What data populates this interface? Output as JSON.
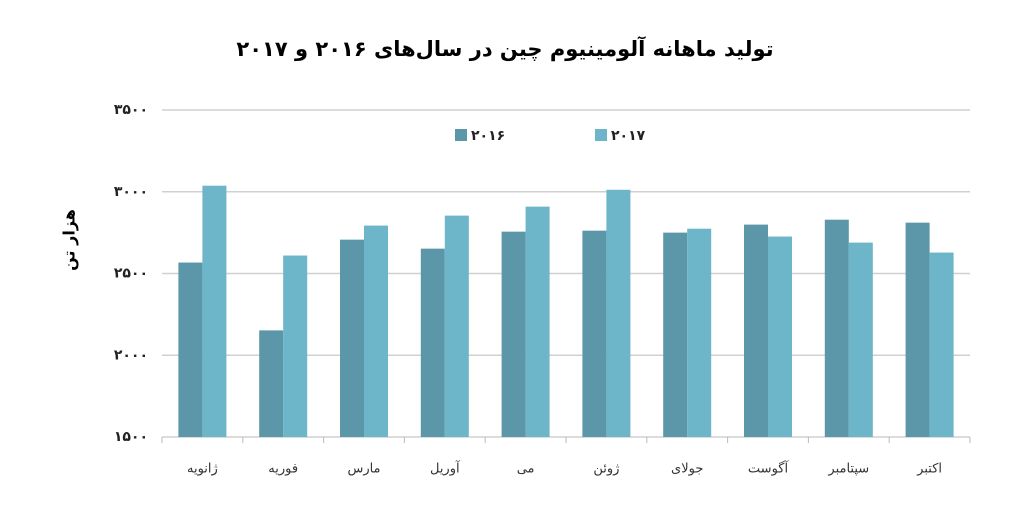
{
  "chart_data": {
    "type": "bar",
    "title": "تولید ماهانه آلومینیوم چین در سال‌های ۲۰۱۶ و ۲۰۱۷",
    "y_label": "هزار تن",
    "categories": [
      "ژانویه",
      "فوریه",
      "مارس",
      "آوریل",
      "می",
      "ژوئن",
      "جولای",
      "آگوست",
      "سپتامبر",
      "اکتبر"
    ],
    "series": [
      {
        "name": "۲۰۱۶",
        "color": "#5b97a8",
        "values": [
          2567,
          2152,
          2707,
          2652,
          2756,
          2762,
          2750,
          2799,
          2829,
          2811
        ]
      },
      {
        "name": "۲۰۱۷",
        "color": "#6db5c8",
        "values": [
          3037,
          2610,
          2793,
          2854,
          2909,
          3012,
          2774,
          2726,
          2689,
          2628
        ]
      }
    ],
    "ylim": [
      1500,
      3500
    ],
    "yticks": [
      {
        "value": 1500,
        "label": "۱۵۰۰"
      },
      {
        "value": 2000,
        "label": "۲۰۰۰"
      },
      {
        "value": 2500,
        "label": "۲۵۰۰"
      },
      {
        "value": 3000,
        "label": "۳۰۰۰"
      },
      {
        "value": 3500,
        "label": "۳۵۰۰"
      }
    ],
    "grid": true,
    "legend": "top"
  }
}
